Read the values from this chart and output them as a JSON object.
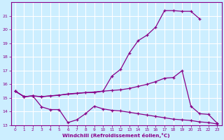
{
  "bg_color": "#cceeff",
  "grid_color": "#ffffff",
  "line_color": "#880088",
  "marker": "+",
  "xlabel": "Windchill (Refroidissement éolien,°C)",
  "xlim": [
    -0.5,
    23.5
  ],
  "ylim": [
    13,
    22
  ],
  "yticks": [
    13,
    14,
    15,
    16,
    17,
    18,
    19,
    20,
    21
  ],
  "xticks": [
    0,
    1,
    2,
    3,
    4,
    5,
    6,
    7,
    8,
    9,
    10,
    11,
    12,
    13,
    14,
    15,
    16,
    17,
    18,
    19,
    20,
    21,
    22,
    23
  ],
  "line1_x": [
    0,
    1,
    2,
    3,
    10,
    11,
    12,
    13,
    14,
    15,
    16,
    17,
    18,
    19,
    20,
    21
  ],
  "line1_y": [
    15.5,
    15.1,
    15.15,
    15.1,
    15.5,
    16.6,
    17.1,
    18.3,
    19.2,
    19.6,
    20.2,
    21.4,
    21.4,
    21.35,
    21.35,
    20.8
  ],
  "line2_x": [
    0,
    1,
    2,
    3,
    4,
    5,
    6,
    7,
    8,
    9,
    10,
    11,
    12,
    13,
    14,
    15,
    16,
    17,
    18,
    19,
    20,
    21,
    22,
    23
  ],
  "line2_y": [
    15.5,
    15.1,
    15.15,
    15.1,
    15.15,
    15.2,
    15.3,
    15.35,
    15.4,
    15.4,
    15.5,
    15.55,
    15.6,
    15.7,
    15.85,
    16.0,
    16.2,
    16.45,
    16.5,
    17.0,
    14.4,
    13.85,
    13.8,
    13.15
  ],
  "line3_x": [
    0,
    1,
    2,
    3,
    4,
    5,
    6,
    7,
    8,
    9,
    10,
    11,
    12,
    13,
    14,
    15,
    16,
    17,
    18,
    19,
    20,
    21,
    22,
    23
  ],
  "line3_y": [
    15.5,
    15.1,
    15.15,
    14.35,
    14.15,
    14.15,
    13.2,
    13.4,
    13.85,
    14.4,
    14.2,
    14.1,
    14.05,
    13.95,
    13.85,
    13.75,
    13.65,
    13.55,
    13.45,
    13.4,
    13.35,
    13.25,
    13.2,
    13.1
  ]
}
